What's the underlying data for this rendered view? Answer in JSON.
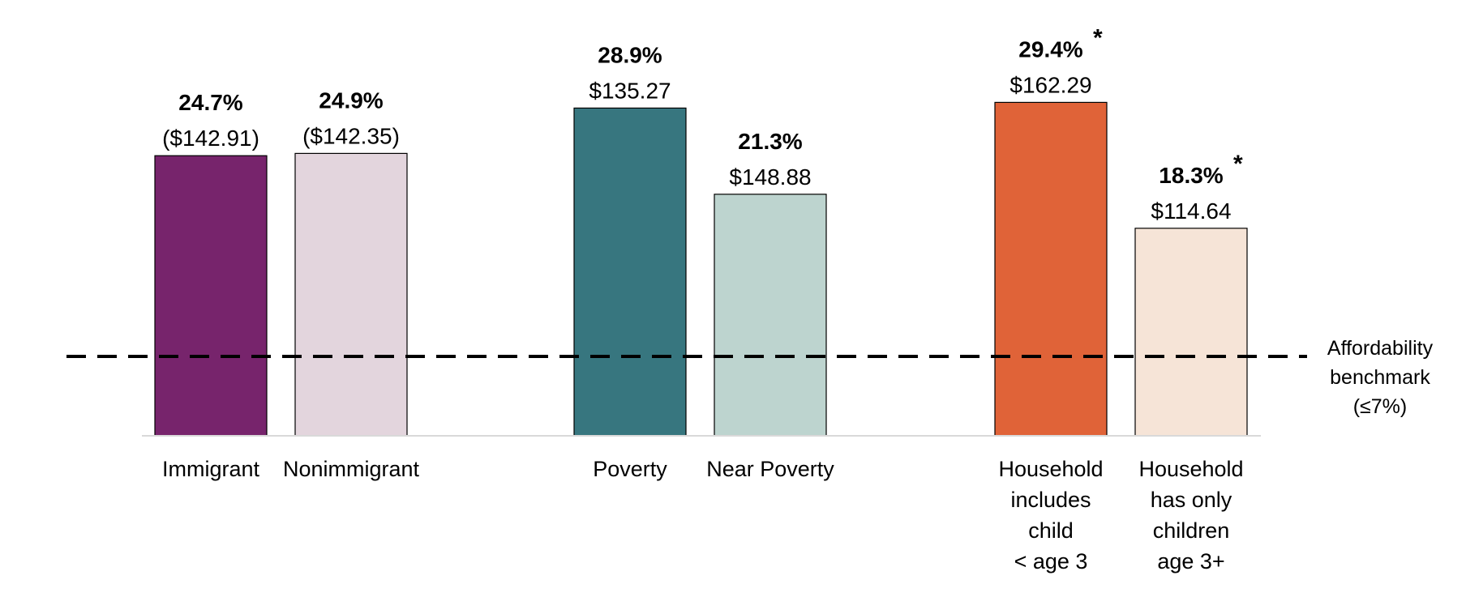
{
  "chart_data": {
    "type": "bar",
    "title": "",
    "xlabel": "",
    "ylabel": "",
    "ylim": [
      0,
      40
    ],
    "grid": false,
    "legend": "none",
    "categories": [
      [
        "Immigrant"
      ],
      [
        "Nonimmigrant"
      ],
      [
        "Poverty"
      ],
      [
        "Near Poverty"
      ],
      [
        "Household",
        "includes",
        "child",
        "< age 3"
      ],
      [
        "Household",
        "has only",
        "children",
        "age 3+"
      ]
    ],
    "values": [
      24.7,
      24.9,
      28.9,
      21.3,
      29.4,
      18.3
    ],
    "value_labels": [
      "24.7%",
      "24.9%",
      "28.9%",
      "21.3%",
      "29.4%",
      "18.3%"
    ],
    "amount_labels": [
      "($142.91)",
      "($142.35)",
      "$135.27",
      "$148.88",
      "$162.29",
      "$114.64"
    ],
    "significance_marks": [
      "",
      "",
      "",
      "",
      "*",
      "*"
    ],
    "colors": [
      "#77246C",
      "#E3D5DD",
      "#37767F",
      "#BDD4CF",
      "#E06338",
      "#F6E4D7"
    ],
    "groups": [
      [
        0,
        1
      ],
      [
        2,
        3
      ],
      [
        4,
        5
      ]
    ],
    "benchmark": {
      "value": 7,
      "label": [
        "Affordability",
        "benchmark",
        "(≤7%)"
      ],
      "style": "dashed"
    }
  }
}
